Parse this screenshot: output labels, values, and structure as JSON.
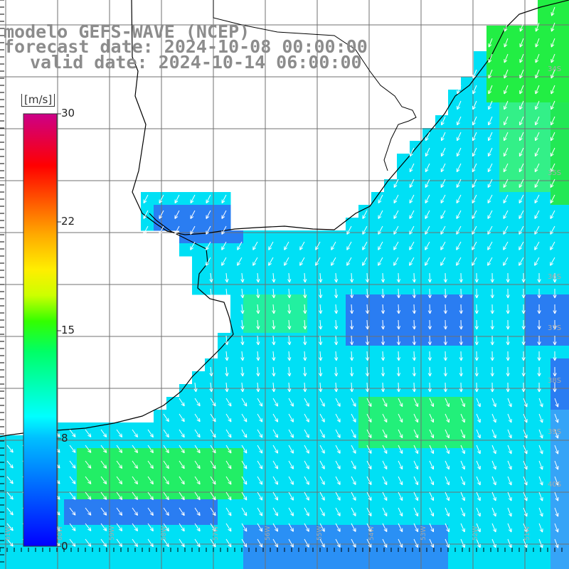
{
  "title": {
    "line1": "modelo GEFS-WAVE (NCEP)",
    "line2": "forecast date: 2024-10-08 00:00:00",
    "line3": "valid date: 2024-10-14 06:00:00"
  },
  "colorbar": {
    "unit": "[m/s]",
    "ticks": [
      "30",
      "22",
      "15",
      "8",
      "0"
    ],
    "min": 0,
    "max": 30
  },
  "map": {
    "field": "wind speed",
    "units": "m/s",
    "lat_labels": [
      "34S",
      "35S",
      "36S",
      "37S",
      "38S",
      "39S",
      "40S"
    ],
    "lon_labels": [
      "61W",
      "60W",
      "59W",
      "58W",
      "57W",
      "56W",
      "55W",
      "54W",
      "53W",
      "52W",
      "51W"
    ],
    "colors": {
      "blue": "#2a7df2",
      "light_blue": "#36a4f7",
      "cyan": "#00ffff",
      "green": "#22ee33",
      "land": "#ffffff",
      "coast": "#000000",
      "grid": "#707070",
      "title": "#8c8c8c"
    }
  }
}
